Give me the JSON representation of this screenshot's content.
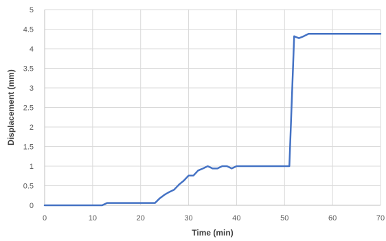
{
  "chart_data": {
    "type": "line",
    "title": "",
    "xlabel": "Time (min)",
    "ylabel": "Displacement (mm)",
    "xlim": [
      0,
      70
    ],
    "ylim": [
      0,
      5
    ],
    "x_ticks": [
      0,
      10,
      20,
      30,
      40,
      50,
      60,
      70
    ],
    "y_ticks": [
      0,
      0.5,
      1,
      1.5,
      2,
      2.5,
      3,
      3.5,
      4,
      4.5,
      5
    ],
    "x_tick_labels": [
      "0",
      "10",
      "20",
      "30",
      "40",
      "50",
      "60",
      "70"
    ],
    "y_tick_labels": [
      "0",
      "0.5",
      "1",
      "1.5",
      "2",
      "2.5",
      "3",
      "3.5",
      "4",
      "4.5",
      "5"
    ],
    "grid": true,
    "legend": "none",
    "series": [
      {
        "color": "#4472c4",
        "x": [
          0,
          12,
          13,
          14,
          15,
          16,
          17,
          18,
          19,
          20,
          21,
          22,
          23,
          24,
          25,
          26,
          27,
          28,
          29,
          30,
          31,
          32,
          33,
          34,
          35,
          36,
          37,
          38,
          39,
          40,
          41,
          42,
          43,
          44,
          45,
          46,
          47,
          48,
          49,
          50,
          51,
          52,
          53,
          54,
          55,
          56,
          60,
          65,
          70
        ],
        "y": [
          0,
          0,
          0.06,
          0.06,
          0.06,
          0.06,
          0.06,
          0.06,
          0.06,
          0.06,
          0.06,
          0.06,
          0.06,
          0.18,
          0.27,
          0.34,
          0.4,
          0.53,
          0.63,
          0.76,
          0.76,
          0.89,
          0.94,
          1.0,
          0.94,
          0.94,
          1.0,
          1.0,
          0.94,
          1.0,
          1.0,
          1.0,
          1.0,
          1.0,
          1.0,
          1.0,
          1.0,
          1.0,
          1.0,
          1.0,
          1.0,
          4.32,
          4.27,
          4.32,
          4.38,
          4.38,
          4.38,
          4.38,
          4.38
        ]
      }
    ]
  }
}
